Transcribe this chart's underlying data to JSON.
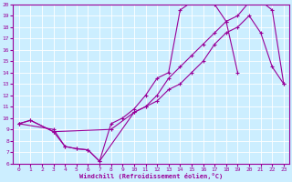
{
  "xlabel": "Windchill (Refroidissement éolien,°C)",
  "bg_color": "#cceeff",
  "line_color": "#990099",
  "grid_color": "#ffffff",
  "xlim": [
    -0.5,
    23.5
  ],
  "ylim": [
    6,
    20
  ],
  "xticks": [
    0,
    1,
    2,
    3,
    4,
    5,
    6,
    7,
    8,
    9,
    10,
    11,
    12,
    13,
    14,
    15,
    16,
    17,
    18,
    19,
    20,
    21,
    22,
    23
  ],
  "yticks": [
    6,
    7,
    8,
    9,
    10,
    11,
    12,
    13,
    14,
    15,
    16,
    17,
    18,
    19,
    20
  ],
  "line1_x": [
    0,
    1,
    3,
    8,
    10,
    11,
    12,
    13,
    14,
    15,
    16,
    17,
    18,
    19,
    20,
    21,
    22,
    23
  ],
  "line1_y": [
    9.5,
    9.8,
    8.8,
    9.0,
    10.5,
    11.0,
    12.0,
    13.5,
    14.5,
    15.5,
    16.5,
    17.5,
    18.5,
    19.0,
    20.2,
    20.3,
    19.5,
    13.0
  ],
  "line2_x": [
    0,
    3,
    4,
    5,
    6,
    7,
    8,
    9,
    10,
    11,
    12,
    13,
    14,
    15,
    16,
    17,
    18,
    19
  ],
  "line2_y": [
    9.5,
    9.0,
    7.5,
    7.3,
    7.2,
    6.2,
    9.5,
    10.0,
    10.8,
    12.0,
    13.5,
    14.0,
    19.5,
    20.2,
    20.3,
    20.0,
    18.5,
    14.0
  ],
  "line3_x": [
    0,
    1,
    3,
    4,
    5,
    6,
    7,
    10,
    11,
    12,
    13,
    14,
    15,
    16,
    17,
    18,
    19,
    20,
    21,
    22,
    23
  ],
  "line3_y": [
    9.5,
    9.8,
    8.8,
    7.5,
    7.3,
    7.2,
    6.2,
    10.5,
    11.0,
    11.5,
    12.5,
    13.0,
    14.0,
    15.0,
    16.5,
    17.5,
    18.0,
    19.0,
    17.5,
    14.5,
    13.0
  ],
  "marker": "+",
  "markersize": 3,
  "linewidth": 0.8
}
